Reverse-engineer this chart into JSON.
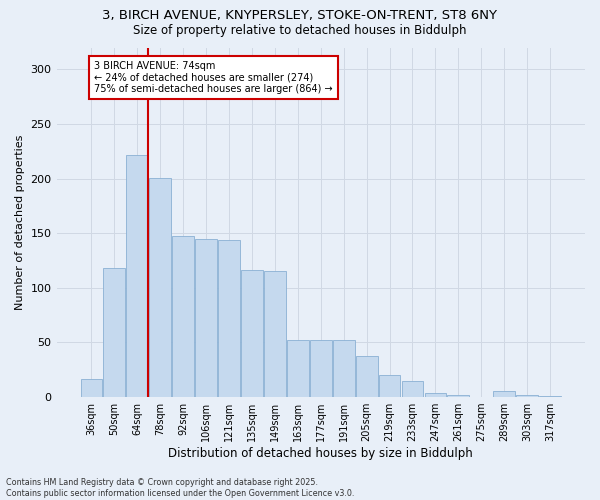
{
  "title_line1": "3, BIRCH AVENUE, KNYPERSLEY, STOKE-ON-TRENT, ST8 6NY",
  "title_line2": "Size of property relative to detached houses in Biddulph",
  "xlabel": "Distribution of detached houses by size in Biddulph",
  "ylabel": "Number of detached properties",
  "bar_labels": [
    "36sqm",
    "50sqm",
    "64sqm",
    "78sqm",
    "92sqm",
    "106sqm",
    "121sqm",
    "135sqm",
    "149sqm",
    "163sqm",
    "177sqm",
    "191sqm",
    "205sqm",
    "219sqm",
    "233sqm",
    "247sqm",
    "261sqm",
    "275sqm",
    "289sqm",
    "303sqm",
    "317sqm"
  ],
  "bar_values": [
    17,
    118,
    222,
    201,
    147,
    145,
    144,
    116,
    115,
    52,
    52,
    52,
    38,
    20,
    15,
    4,
    2,
    0,
    6,
    2,
    1
  ],
  "bar_color": "#c5d9ee",
  "bar_edge_color": "#8ab0d4",
  "grid_color": "#d0d8e4",
  "background_color": "#e8eff8",
  "annotation_text": "3 BIRCH AVENUE: 74sqm\n← 24% of detached houses are smaller (274)\n75% of semi-detached houses are larger (864) →",
  "annotation_box_color": "#ffffff",
  "annotation_box_edge": "#cc0000",
  "vline_color": "#cc0000",
  "ylim": [
    0,
    320
  ],
  "yticks": [
    0,
    50,
    100,
    150,
    200,
    250,
    300
  ],
  "footnote": "Contains HM Land Registry data © Crown copyright and database right 2025.\nContains public sector information licensed under the Open Government Licence v3.0."
}
